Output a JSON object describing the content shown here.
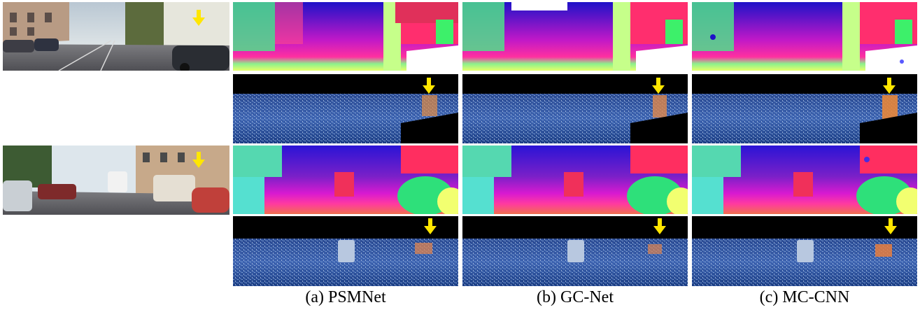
{
  "captions": {
    "psmnet": "(a) PSMNet",
    "gcnet": "(b) GC-Net",
    "mccnn": "(c) MC-CNN"
  },
  "colors": {
    "arrow": "#ffe600",
    "error_background": "#102a66",
    "mask": "#000000"
  },
  "arrow_icon": "down-arrow-icon"
}
